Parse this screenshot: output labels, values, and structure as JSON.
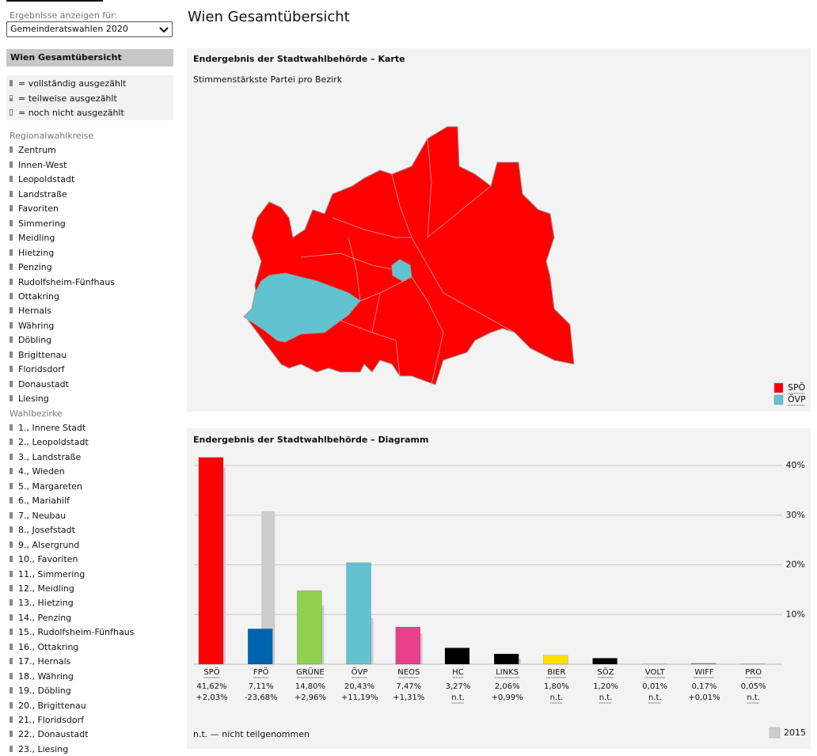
{
  "sidebar": {
    "select_label": "Ergebnisse anzeigen für:",
    "select_value": "Gemeinderatswahlen 2020",
    "active_item": "Wien Gesamtübersicht",
    "legend": [
      "= vollständig ausgezählt",
      "= teilweise ausgezählt",
      "= noch nicht ausgezählt"
    ],
    "sections": [
      {
        "title": "Regionalwahlkreise",
        "items": [
          "Zentrum",
          "Innen-West",
          "Leopoldstadt",
          "Landstraße",
          "Favoriten",
          "Simmering",
          "Meidling",
          "Hietzing",
          "Penzing",
          "Rudolfsheim-Fünfhaus",
          "Ottakring",
          "Hernals",
          "Währing",
          "Döbling",
          "Brigittenau",
          "Floridsdorf",
          "Donaustadt",
          "Liesing"
        ]
      },
      {
        "title": "Wahlbezirke",
        "items": [
          "1., Innere Stadt",
          "2., Leopoldstadt",
          "3., Landstraße",
          "4., Wieden",
          "5., Margareten",
          "6., Mariahilf",
          "7., Neubau",
          "8., Josefstadt",
          "9., Alsergrund",
          "10., Favoriten",
          "11., Simmering",
          "12., Meidling",
          "13., Hietzing",
          "14., Penzing",
          "15., Rudolfsheim-Fünfhaus",
          "16., Ottakring",
          "17., Hernals",
          "18., Währing",
          "19., Döbling",
          "20., Brigittenau",
          "21., Floridsdorf",
          "22., Donaustadt",
          "23., Liesing"
        ]
      }
    ]
  },
  "header": {
    "title": "Wien Gesamtübersicht"
  },
  "map": {
    "title": "Endergebnis der Stadtwahlbehörde – Karte",
    "subtitle": "Stimmenstärkste Partei pro Bezirk",
    "legend": [
      {
        "name": "SPÖ",
        "color": "#ff0000"
      },
      {
        "name": "ÖVP",
        "color": "#62c3d0"
      }
    ]
  },
  "chart_data": {
    "type": "bar",
    "title": "Endergebnis der Stadtwahlbehörde – Diagramm",
    "categories": [
      "SPÖ",
      "FPÖ",
      "GRÜNE",
      "ÖVP",
      "NEOS",
      "HC",
      "LINKS",
      "BIER",
      "SÖZ",
      "VOLT",
      "WIFF",
      "PRO"
    ],
    "series": [
      {
        "colors": [
          "#ff0000",
          "#0063b0",
          "#92d050",
          "#62c3d0",
          "#e8418a",
          "#000000",
          "#000000",
          "#ffe000",
          "#000000",
          "#5a2d82",
          "#888888",
          "#888888"
        ],
        "values": [
          41.62,
          7.11,
          14.8,
          20.43,
          7.47,
          3.27,
          2.06,
          1.8,
          1.2,
          0.01,
          0.17,
          0.05
        ],
        "value_labels": [
          "41,62%",
          "7,11%",
          "14,80%",
          "20,43%",
          "7,47%",
          "3,27%",
          "2,06%",
          "1,80%",
          "1,20%",
          "0,01%",
          "0,17%",
          "0,05%"
        ],
        "change_labels": [
          "+2,03%",
          "-23,68%",
          "+2,96%",
          "+11,19%",
          "+1,31%",
          "n.t.",
          "+0,99%",
          "n.t.",
          "n.t.",
          "n.t.",
          "+0,01%",
          "n.t."
        ]
      },
      {
        "name": "2015",
        "color": "#cccccc",
        "values": [
          39.59,
          30.79,
          11.84,
          9.24,
          6.16,
          null,
          1.07,
          null,
          null,
          null,
          0.16,
          null
        ]
      }
    ],
    "ylim": [
      0,
      40
    ],
    "yticks": [
      {
        "value": 10,
        "label": "10%"
      },
      {
        "value": 20,
        "label": "20%"
      },
      {
        "value": 30,
        "label": "30%"
      },
      {
        "value": 40,
        "label": "40%"
      }
    ],
    "grid": true,
    "legend": "bottom-right",
    "note": "n.t. — nicht teilgenommen"
  }
}
